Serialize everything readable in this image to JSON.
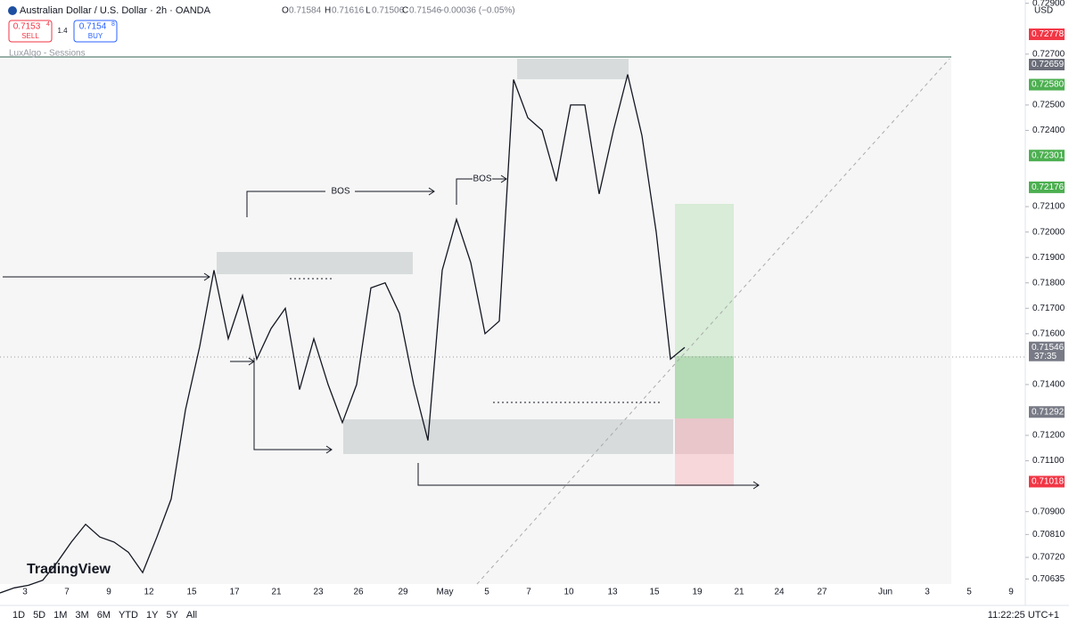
{
  "header": {
    "symbol": "Australian Dollar / U.S. Dollar · 2h · OANDA",
    "o_label": "O",
    "open": "0.71584",
    "h_label": "H",
    "high": "0.71616",
    "l_label": "L",
    "low": "0.71506",
    "c_label": "C",
    "close": "0.71546",
    "change": "−0.00036 (−0.05%)",
    "sell_price": "0.7153",
    "sell_sup": "4",
    "sell": "SELL",
    "spread": "1.4",
    "buy_price": "0.7154",
    "buy_sup": "8",
    "buy": "BUY",
    "indicator": "LuxAlgo - Sessions",
    "logo": "TradingView"
  },
  "chart_data": {
    "type": "line",
    "currency": "USD",
    "ylim": [
      0.70531,
      0.72913
    ],
    "yticks": [
      {
        "value": 0.729,
        "label": "0.72900"
      },
      {
        "value": 0.727,
        "label": "0.72700"
      },
      {
        "value": 0.725,
        "label": "0.72500"
      },
      {
        "value": 0.724,
        "label": "0.72400"
      },
      {
        "value": 0.721,
        "label": "0.72100"
      },
      {
        "value": 0.72,
        "label": "0.72000"
      },
      {
        "value": 0.719,
        "label": "0.71900"
      },
      {
        "value": 0.718,
        "label": "0.71800"
      },
      {
        "value": 0.717,
        "label": "0.71700"
      },
      {
        "value": 0.716,
        "label": "0.71600"
      },
      {
        "value": 0.714,
        "label": "0.71400"
      },
      {
        "value": 0.712,
        "label": "0.71200"
      },
      {
        "value": 0.711,
        "label": "0.71100"
      },
      {
        "value": 0.709,
        "label": "0.70900"
      },
      {
        "value": 0.7081,
        "label": "0.70810"
      },
      {
        "value": 0.7072,
        "label": "0.70720"
      },
      {
        "value": 0.70635,
        "label": "0.70635"
      }
    ],
    "x_axis_labels": [
      "3",
      "7",
      "9",
      "12",
      "15",
      "17",
      "21",
      "23",
      "26",
      "29",
      "May",
      "5",
      "7",
      "10",
      "13",
      "15",
      "19",
      "21",
      "24",
      "27",
      "Jun",
      "3",
      "5",
      "9"
    ],
    "series": [
      {
        "color": "#131722",
        "values": [
          0.7058,
          0.706,
          0.7061,
          0.7063,
          0.707,
          0.7078,
          0.7085,
          0.708,
          0.7078,
          0.7074,
          0.7066,
          0.708,
          0.7095,
          0.713,
          0.7155,
          0.7185,
          0.7158,
          0.7175,
          0.715,
          0.7162,
          0.717,
          0.7138,
          0.7158,
          0.714,
          0.7125,
          0.714,
          0.7178,
          0.718,
          0.7168,
          0.714,
          0.7118,
          0.7185,
          0.7205,
          0.7188,
          0.716,
          0.7165,
          0.726,
          0.7245,
          0.724,
          0.722,
          0.725,
          0.725,
          0.7215,
          0.724,
          0.7262,
          0.7238,
          0.72,
          0.715,
          0.71546
        ]
      }
    ],
    "price_labels": [
      {
        "value": 0.72778,
        "color": "#f23645"
      },
      {
        "value": 0.72659,
        "color": "#6a6d78"
      },
      {
        "value": {
          "value": 0.7258,
          "label": "0.72580"
        },
        "color": "#4caf50"
      },
      {
        "value": 0.72301,
        "color": "#4caf50"
      },
      {
        "value": 0.72176,
        "color": "#4caf50"
      },
      {
        "value": 0.71546,
        "color": "#787b86"
      },
      {
        "value": 0.71292,
        "color": "#787b86"
      },
      {
        "value": 0.71018,
        "color": "#f23645"
      }
    ],
    "countdown": "37:35",
    "annotations": [
      "BOS",
      "BOS"
    ]
  },
  "toolbar": {
    "ranges": [
      "1D",
      "5D",
      "1M",
      "3M",
      "6M",
      "YTD",
      "1Y",
      "5Y",
      "All"
    ],
    "time": "11:22:25 UTC+1"
  }
}
